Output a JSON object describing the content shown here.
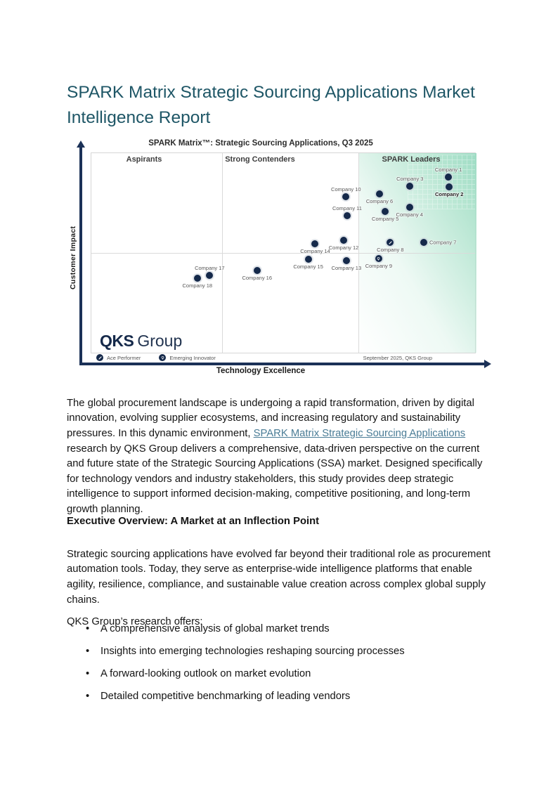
{
  "doc": {
    "title": "SPARK Matrix Strategic Sourcing Applications Market Intelligence Report"
  },
  "chart": {
    "title": "SPARK Matrix™: Strategic Sourcing Applications, Q3 2025",
    "x_axis_label": "Technology Excellence",
    "y_axis_label": "Customer Impact",
    "quadrants": [
      "Aspirants",
      "Strong Contenders",
      "SPARK Leaders"
    ],
    "logo": {
      "bold": "QKS",
      "regular": "Group"
    },
    "legend": [
      {
        "icon": "ace-performer-icon",
        "label": "Ace Performer"
      },
      {
        "icon": "emerging-innovator-icon",
        "label": "Emerging Innovator"
      }
    ],
    "footnote": "September 2025, QKS Group",
    "colors": {
      "dot_navy": "#15294a",
      "axis_navy": "#1b3157",
      "leaders_green": "#9edcc4",
      "title_teal": "#1e5666",
      "link_blue": "#4a7c96"
    }
  },
  "chart_data": {
    "type": "scatter",
    "title": "SPARK Matrix™: Strategic Sourcing Applications, Q3 2025",
    "xlabel": "Technology Excellence",
    "ylabel": "Customer Impact",
    "xlim": [
      0,
      100
    ],
    "ylim": [
      0,
      100
    ],
    "grid": false,
    "quadrant_columns": [
      "Aspirants",
      "Strong Contenders",
      "SPARK Leaders"
    ],
    "marker_legend": {
      "ace-performer": "Ace Performer",
      "emerging-innovator": "Emerging Innovator"
    },
    "points": [
      {
        "label": "Company 1",
        "x": 92.9,
        "y": 87.9,
        "label_pos": "above"
      },
      {
        "label": "Company 2",
        "x": 93.1,
        "y": 83.0,
        "label_pos": "below",
        "bold": true
      },
      {
        "label": "Company 3",
        "x": 82.9,
        "y": 83.2,
        "label_pos": "above"
      },
      {
        "label": "Company 4",
        "x": 82.8,
        "y": 72.6,
        "label_pos": "below"
      },
      {
        "label": "Company 5",
        "x": 76.5,
        "y": 70.8,
        "label_pos": "below"
      },
      {
        "label": "Company 6",
        "x": 75.0,
        "y": 79.4,
        "label_pos": "below"
      },
      {
        "label": "Company 7",
        "x": 86.5,
        "y": 55.4,
        "label_pos": "right"
      },
      {
        "label": "Company 8",
        "x": 77.8,
        "y": 55.1,
        "label_pos": "below",
        "marker": "ace-performer"
      },
      {
        "label": "Company 9",
        "x": 74.8,
        "y": 47.2,
        "label_pos": "below",
        "marker": "emerging-innovator"
      },
      {
        "label": "Company 10",
        "x": 66.3,
        "y": 78.0,
        "label_pos": "above"
      },
      {
        "label": "Company 11",
        "x": 66.6,
        "y": 68.5,
        "label_pos": "above"
      },
      {
        "label": "Company 12",
        "x": 65.7,
        "y": 56.3,
        "label_pos": "below"
      },
      {
        "label": "Company 13",
        "x": 66.4,
        "y": 46.3,
        "label_pos": "below"
      },
      {
        "label": "Company 14",
        "x": 58.3,
        "y": 54.5,
        "label_pos": "below"
      },
      {
        "label": "Company 15",
        "x": 56.5,
        "y": 46.7,
        "label_pos": "below",
        "wrap": true
      },
      {
        "label": "Company 16",
        "x": 43.2,
        "y": 41.3,
        "label_pos": "below"
      },
      {
        "label": "Company 17",
        "x": 30.9,
        "y": 38.8,
        "label_pos": "above"
      },
      {
        "label": "Company 18",
        "x": 27.7,
        "y": 37.4,
        "label_pos": "below"
      }
    ]
  },
  "body": {
    "p1_before_link": "The global procurement landscape is undergoing a rapid transformation, driven by digital innovation, evolving supplier ecosystems, and increasing regulatory and sustainability pressures. In this dynamic environment, ",
    "p1_link": "SPARK Matrix Strategic Sourcing Applications",
    "p1_after_link": " research by QKS Group delivers a comprehensive, data-driven perspective on the current and future state of the Strategic Sourcing Applications (SSA) market. Designed specifically for technology vendors and industry stakeholders, this study provides deep strategic intelligence to support informed decision-making, competitive positioning, and long-term growth planning.",
    "heading1": "Executive Overview: A Market at an Inflection Point",
    "p2": "Strategic sourcing applications have evolved far beyond their traditional role as procurement automation tools. Today, they serve as enterprise-wide intelligence platforms that enable agility, resilience, compliance, and sustainable value creation across complex global supply chains.",
    "p3": "QKS Group’s research offers:",
    "bullets": [
      "A comprehensive analysis of global market trends",
      "Insights into emerging technologies reshaping sourcing processes",
      "A forward-looking outlook on market evolution",
      "Detailed competitive benchmarking of leading vendors"
    ]
  }
}
